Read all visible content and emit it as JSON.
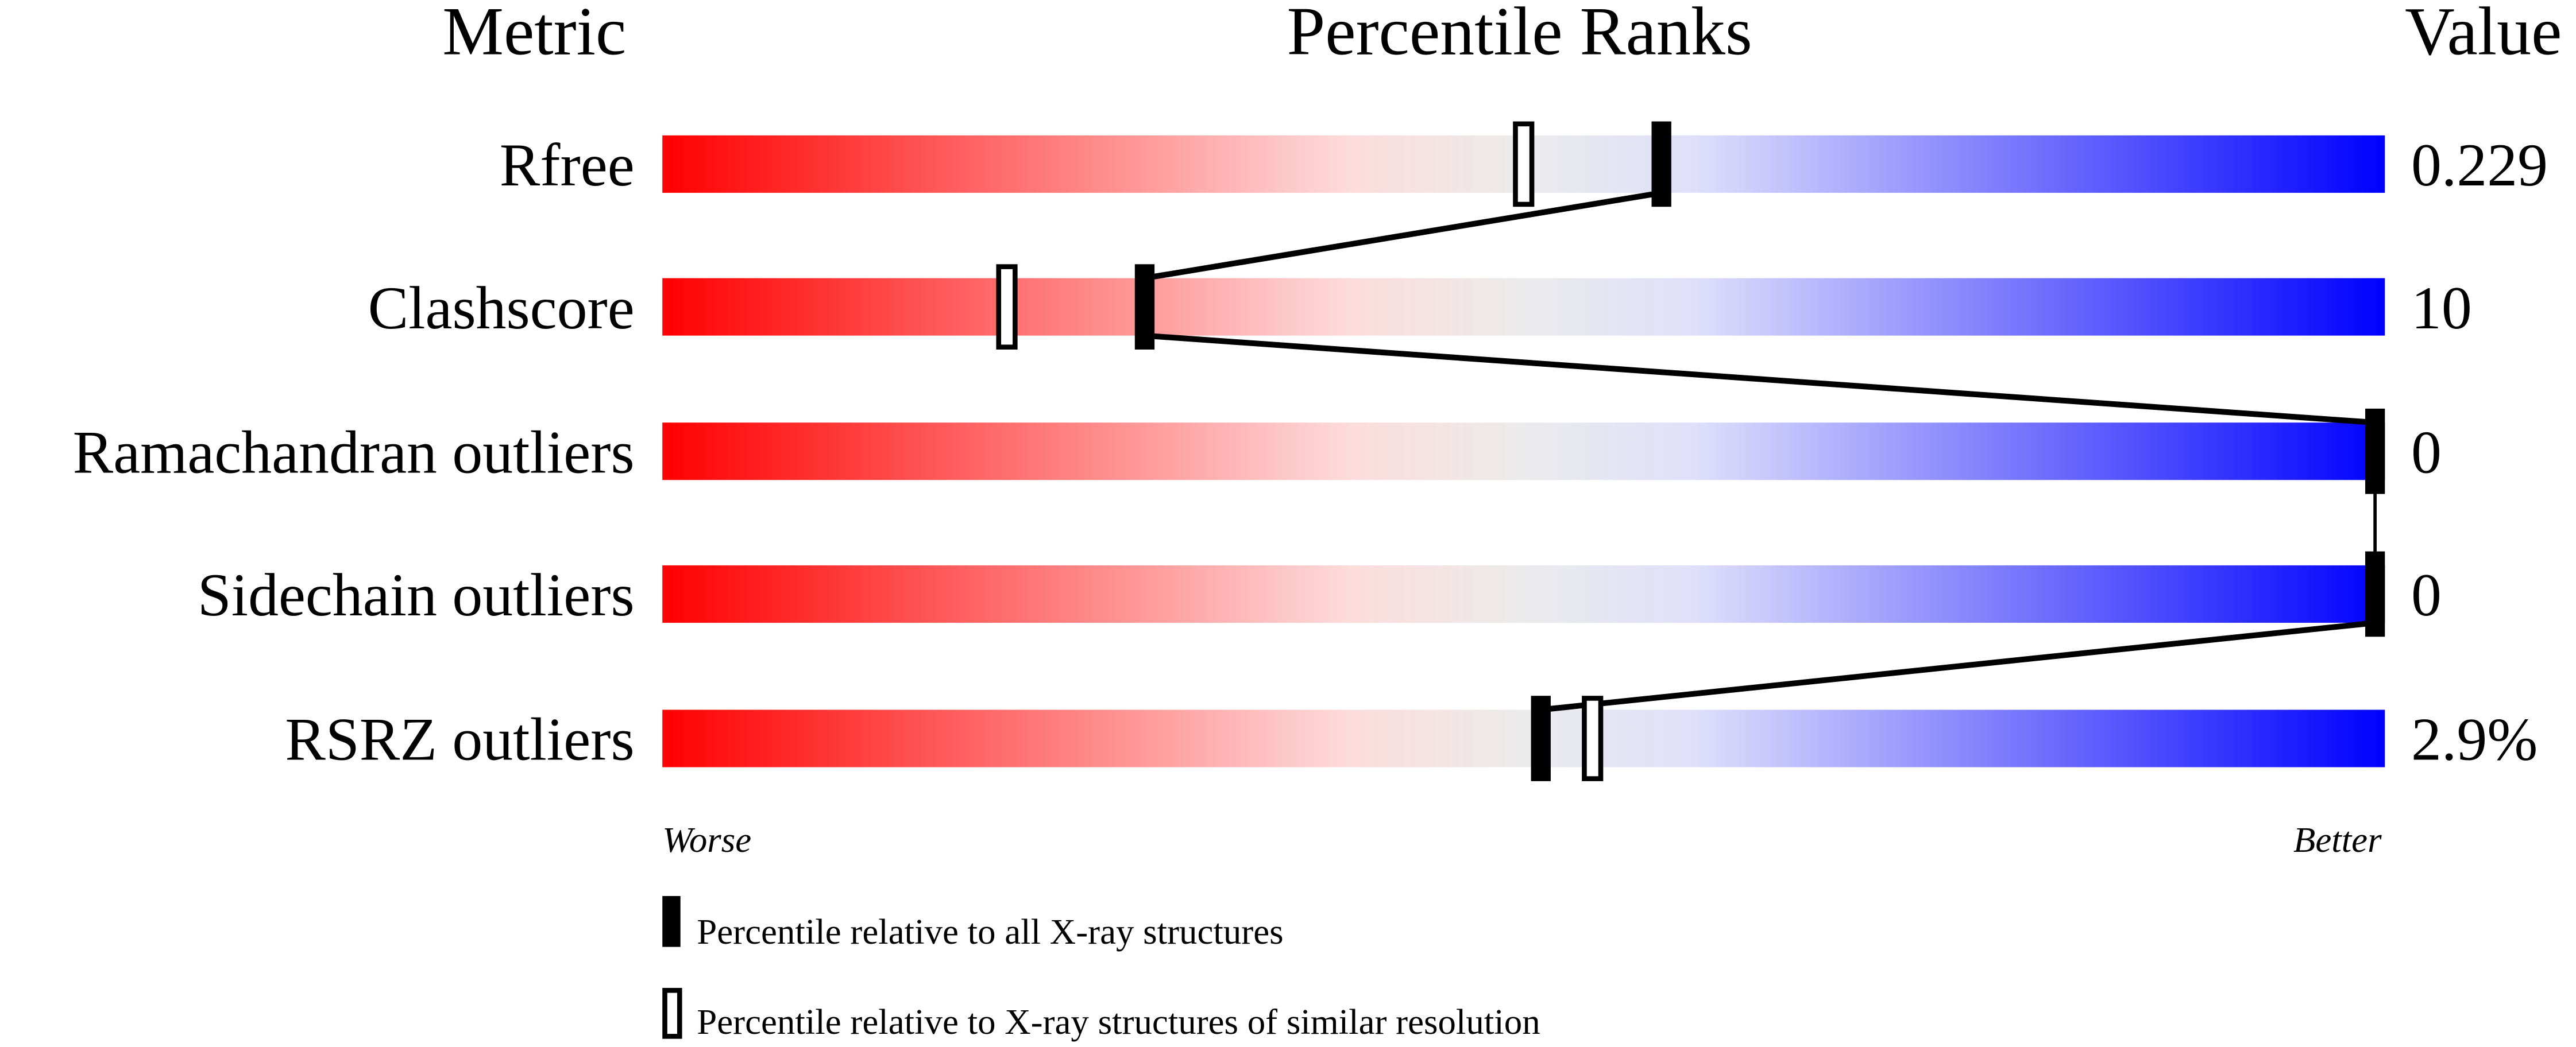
{
  "chart_data": {
    "type": "percentile-ranks",
    "headers": {
      "metric": "Metric",
      "ranks": "Percentile Ranks",
      "value": "Value"
    },
    "xlim": [
      0,
      100
    ],
    "axis_labels": {
      "left": "Worse",
      "right": "Better"
    },
    "gradient_colors": [
      "#ff0000",
      "#fddcdc",
      "#ebebeb",
      "#dfdffb",
      "#0000ff"
    ],
    "metrics": [
      {
        "name": "Rfree",
        "value": "0.229",
        "percentile_all": 58,
        "percentile_similar": 50
      },
      {
        "name": "Clashscore",
        "value": "10",
        "percentile_all": 28,
        "percentile_similar": 20
      },
      {
        "name": "Ramachandran outliers",
        "value": "0",
        "percentile_all": 100,
        "percentile_similar": null
      },
      {
        "name": "Sidechain outliers",
        "value": "0",
        "percentile_all": 100,
        "percentile_similar": null
      },
      {
        "name": "RSRZ outliers",
        "value": "2.9%",
        "percentile_all": 51,
        "percentile_similar": 54
      }
    ],
    "legend": [
      {
        "marker": "filled",
        "label": "Percentile relative to all X-ray structures"
      },
      {
        "marker": "hollow",
        "label": "Percentile relative to X-ray structures of similar resolution"
      }
    ]
  }
}
